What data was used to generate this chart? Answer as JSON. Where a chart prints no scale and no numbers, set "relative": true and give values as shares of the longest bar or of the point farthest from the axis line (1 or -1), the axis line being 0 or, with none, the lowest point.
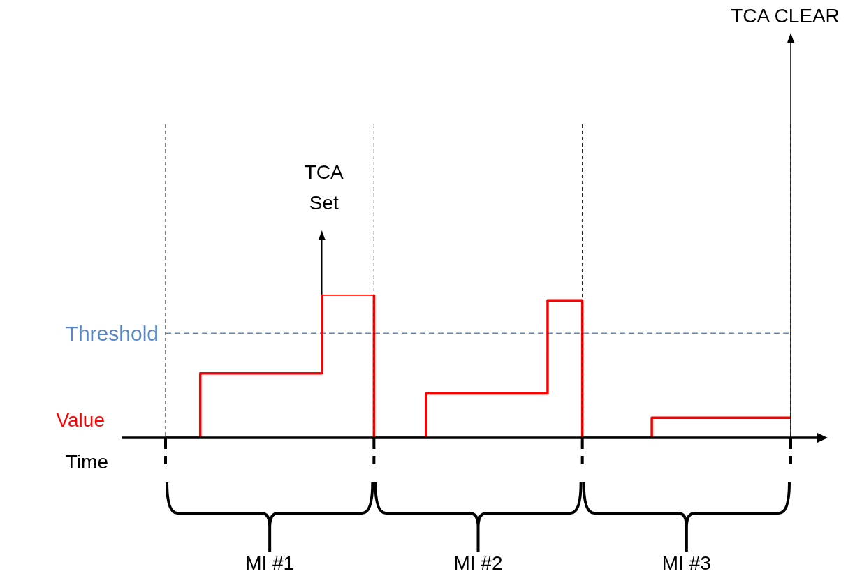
{
  "chart_data": {
    "type": "step",
    "relative": true,
    "xlabel": "Time",
    "categories": [
      null,
      null,
      null,
      null,
      null,
      null,
      null,
      null,
      null,
      null,
      null,
      null,
      null,
      null,
      null,
      null,
      null,
      null,
      null,
      null,
      null,
      null,
      null,
      null,
      null,
      null,
      null,
      null,
      null,
      null,
      null,
      null,
      null,
      null,
      null,
      null,
      null
    ],
    "series": [
      {
        "name": "Value",
        "color": "#ff0000",
        "values": [
          0,
          0,
          0.45,
          0.45,
          0.45,
          0.45,
          0.45,
          0.45,
          0.45,
          1,
          1,
          1,
          0,
          0,
          0,
          0.31,
          0.31,
          0.31,
          0.31,
          0.31,
          0.31,
          0.31,
          0.96,
          0.96,
          0,
          0,
          0,
          0,
          0.14,
          0.14,
          0.14,
          0.14,
          0.14,
          0.14,
          0.14,
          0.14,
          0.14
        ]
      }
    ],
    "ref_lines": [
      {
        "axis": "y",
        "value": 0.73,
        "label": "Threshold",
        "color": "#5b87c5",
        "line_style": "dashed"
      }
    ],
    "annotations": [
      "TCA Set",
      "TCA CLEAR",
      "MI #1",
      "MI #2",
      "MI #3"
    ],
    "grid": false,
    "legend": false,
    "marker": "none",
    "line_style": "solid"
  }
}
